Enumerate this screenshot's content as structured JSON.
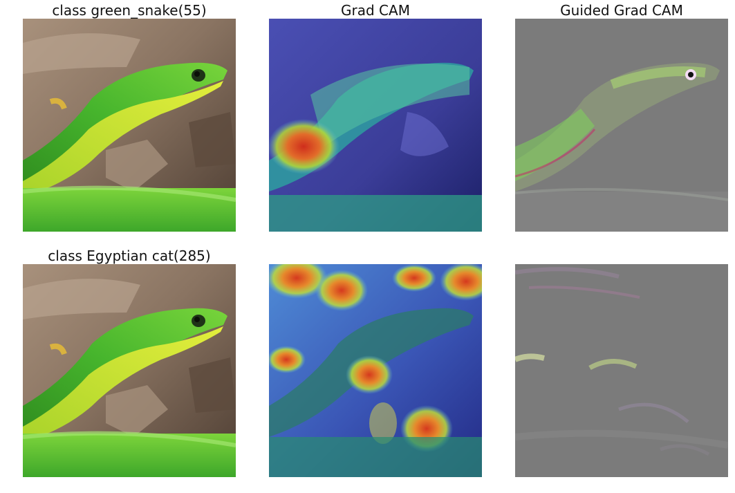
{
  "panels": {
    "row1": {
      "original_title": "class green_snake(55)",
      "gradcam_title": "Grad CAM",
      "guided_title": "Guided Grad CAM"
    },
    "row2": {
      "original_title": "class Egyptian cat(285)",
      "gradcam_title": "",
      "guided_title": ""
    }
  },
  "colors": {
    "snake_green": "#43b82d",
    "snake_yellow": "#d7e92c",
    "background_leaf": "#7a6652",
    "guided_gray": "#7b7b7b",
    "heatmap_red": "#d53a20",
    "heatmap_blue": "#1a3fbf"
  }
}
